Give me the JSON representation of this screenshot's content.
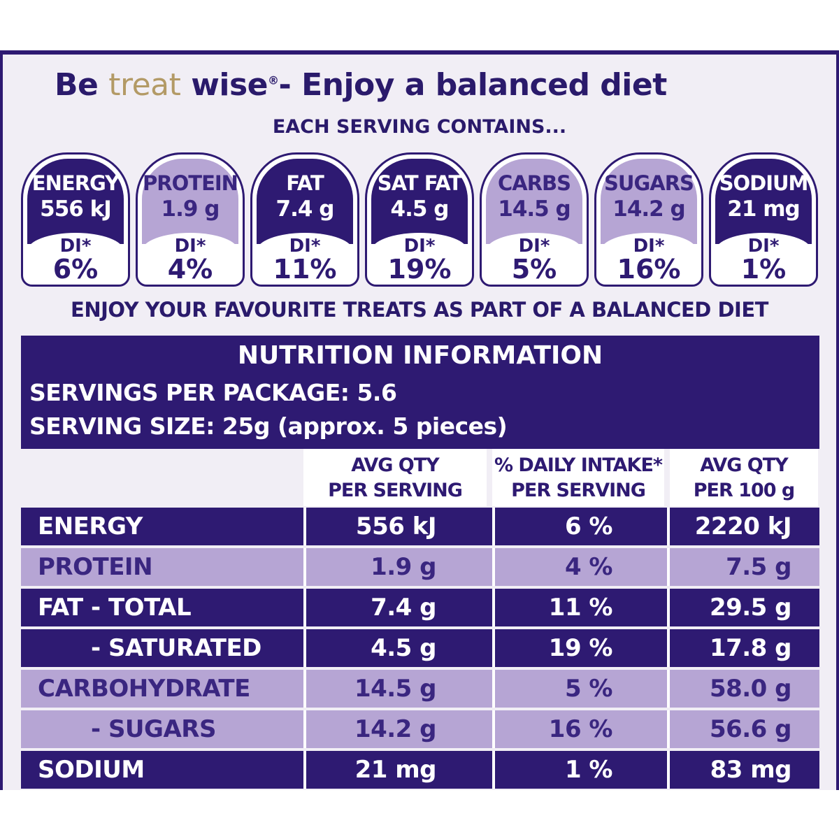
{
  "headline": {
    "be": "Be",
    "treat": "treat",
    "wise": "wise",
    "reg": "®",
    "rest": "- Enjoy a balanced diet"
  },
  "subhead": "EACH SERVING CONTAINS...",
  "badges": [
    {
      "name": "ENERGY",
      "amount": "556 kJ",
      "di_label": "DI*",
      "di_pct": "6%",
      "style": "dark"
    },
    {
      "name": "PROTEIN",
      "amount": "1.9 g",
      "di_label": "DI*",
      "di_pct": "4%",
      "style": "light"
    },
    {
      "name": "FAT",
      "amount": "7.4 g",
      "di_label": "DI*",
      "di_pct": "11%",
      "style": "dark"
    },
    {
      "name": "SAT FAT",
      "amount": "4.5 g",
      "di_label": "DI*",
      "di_pct": "19%",
      "style": "dark"
    },
    {
      "name": "CARBS",
      "amount": "14.5 g",
      "di_label": "DI*",
      "di_pct": "5%",
      "style": "light"
    },
    {
      "name": "SUGARS",
      "amount": "14.2 g",
      "di_label": "DI*",
      "di_pct": "16%",
      "style": "light"
    },
    {
      "name": "SODIUM",
      "amount": "21 mg",
      "di_label": "DI*",
      "di_pct": "1%",
      "style": "dark"
    }
  ],
  "tagline": "ENJOY YOUR FAVOURITE TREATS AS PART OF A BALANCED DIET",
  "nutrition": {
    "title": "NUTRITION INFORMATION",
    "servings_per_package": "SERVINGS PER PACKAGE: 5.6",
    "serving_size": "SERVING SIZE: 25g (approx. 5 pieces)",
    "columns": {
      "per_serving_1": "AVG QTY",
      "per_serving_2": "PER SERVING",
      "daily_intake_1": "% DAILY INTAKE*",
      "daily_intake_2": "PER SERVING",
      "per_100g_1": "AVG QTY",
      "per_100g_2": "PER 100 g"
    },
    "rows": [
      {
        "name": "ENERGY",
        "per_serving": "556 kJ",
        "di": "6 %",
        "per_100g": "2220 kJ",
        "style": "dark",
        "indent": false
      },
      {
        "name": "PROTEIN",
        "per_serving": "1.9 g",
        "di": "4 %",
        "per_100g": "7.5 g",
        "style": "light",
        "indent": false
      },
      {
        "name": "FAT - TOTAL",
        "per_serving": "7.4 g",
        "di": "11 %",
        "per_100g": "29.5 g",
        "style": "dark",
        "indent": false
      },
      {
        "name": "- SATURATED",
        "per_serving": "4.5 g",
        "di": "19 %",
        "per_100g": "17.8 g",
        "style": "dark",
        "indent": true
      },
      {
        "name": "CARBOHYDRATE",
        "per_serving": "14.5 g",
        "di": "5 %",
        "per_100g": "58.0 g",
        "style": "light",
        "indent": false
      },
      {
        "name": "- SUGARS",
        "per_serving": "14.2 g",
        "di": "16 %",
        "per_100g": "56.6 g",
        "style": "light",
        "indent": true
      },
      {
        "name": "SODIUM",
        "per_serving": "21 mg",
        "di": "1 %",
        "per_100g": "83 mg",
        "style": "dark",
        "indent": false
      }
    ]
  },
  "colors": {
    "purple_dark": "#2e1a72",
    "purple_light": "#b6a5d4",
    "gold": "#b39a66",
    "background": "#f1eef5"
  }
}
